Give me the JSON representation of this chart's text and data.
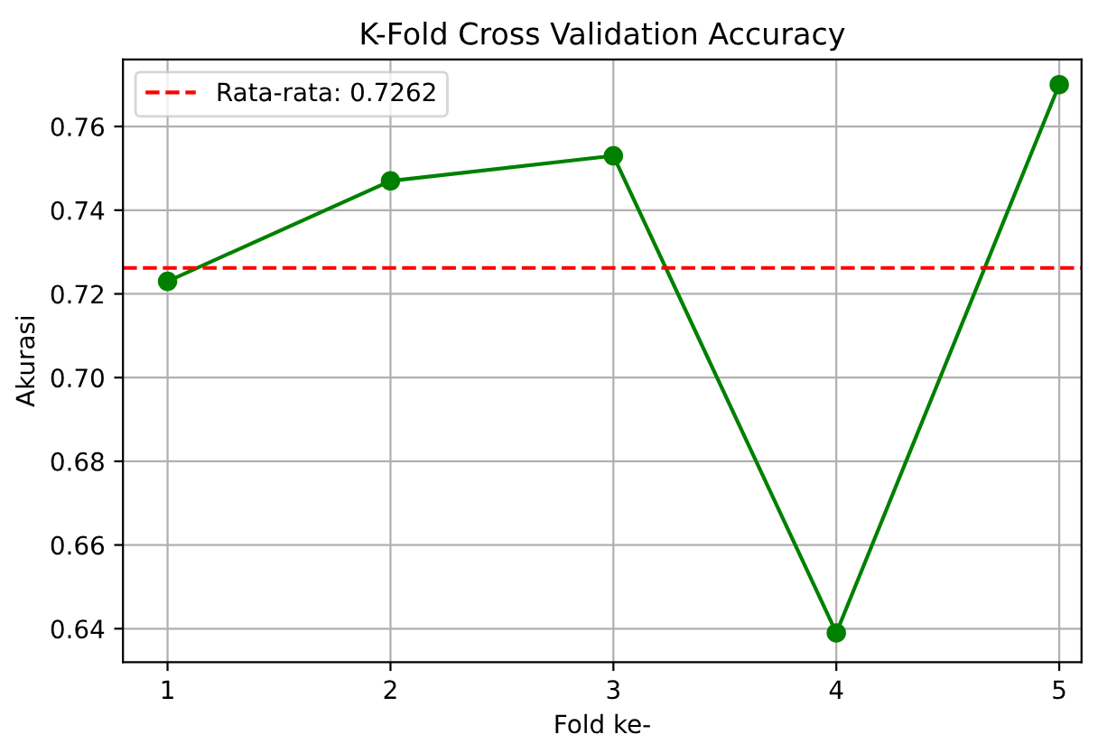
{
  "chart_data": {
    "type": "line",
    "title": "K-Fold Cross Validation Accuracy",
    "xlabel": "Fold ke-",
    "ylabel": "Akurasi",
    "x": [
      1,
      2,
      3,
      4,
      5
    ],
    "series": [
      {
        "color": "#008000",
        "values": [
          0.723,
          0.747,
          0.753,
          0.639,
          0.77
        ]
      }
    ],
    "ref_lines": [
      {
        "axis": "y",
        "value": 0.7262,
        "label": "Rata-rata: 0.7262",
        "color": "#ff0000",
        "line_style": "dashed"
      }
    ],
    "xlim": [
      0.8,
      5.1
    ],
    "xticks": [
      1,
      2,
      3,
      4,
      5
    ],
    "ylim": [
      0.632,
      0.776
    ],
    "yticks": [
      {
        "value": 0.64,
        "label": "0.64"
      },
      {
        "value": 0.66,
        "label": "0.66"
      },
      {
        "value": 0.68,
        "label": "0.68"
      },
      {
        "value": 0.7,
        "label": "0.70"
      },
      {
        "value": 0.72,
        "label": "0.72"
      },
      {
        "value": 0.74,
        "label": "0.74"
      },
      {
        "value": 0.76,
        "label": "0.76"
      }
    ],
    "grid": true,
    "legend": "top left",
    "marker": "circle",
    "line_style": "solid"
  }
}
